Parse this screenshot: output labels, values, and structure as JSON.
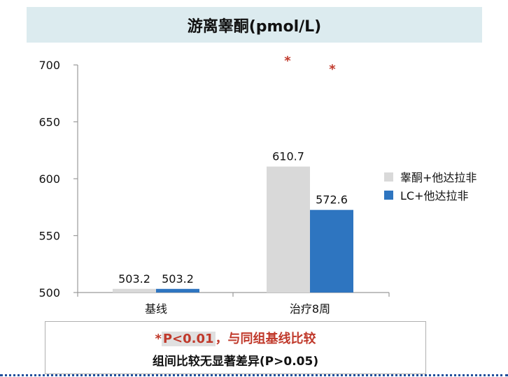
{
  "chart_data": {
    "type": "bar",
    "title": "游离睾酮(pmol/L)",
    "categories": [
      "基线",
      "治疗8周"
    ],
    "series": [
      {
        "name": "睾酮+他达拉非",
        "values": [
          503.2,
          610.7
        ],
        "color": "#d9d9d9"
      },
      {
        "name": "LC+他达拉非",
        "values": [
          503.2,
          572.6
        ],
        "color": "#2e75c0"
      }
    ],
    "data_labels": [
      [
        "503.2",
        "610.7"
      ],
      [
        "503.2",
        "572.6"
      ]
    ],
    "ylim": [
      500,
      700
    ],
    "yticks": [
      500,
      550,
      600,
      650,
      700
    ],
    "significance_markers": [
      "*",
      "*"
    ],
    "marker_color": "#c0392b",
    "legend_position": "right",
    "grid": false
  },
  "footnote": {
    "star": "*",
    "pvalue": "P<0.01",
    "rest": "，与同组基线比较",
    "line2": "组间比较无显著差异(P>0.05)"
  }
}
